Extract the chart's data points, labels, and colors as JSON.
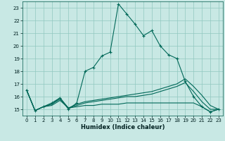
{
  "xlabel": "Humidex (Indice chaleur)",
  "bg_color": "#c8e8e4",
  "grid_color": "#90c8c0",
  "line_color": "#006858",
  "xlim": [
    -0.5,
    23.5
  ],
  "ylim": [
    14.5,
    23.5
  ],
  "yticks": [
    15,
    16,
    17,
    18,
    19,
    20,
    21,
    22,
    23
  ],
  "xticks": [
    0,
    1,
    2,
    3,
    4,
    5,
    6,
    7,
    8,
    9,
    10,
    11,
    12,
    13,
    14,
    15,
    16,
    17,
    18,
    19,
    20,
    21,
    22,
    23
  ],
  "series_main": [
    16.5,
    14.9,
    15.2,
    15.5,
    15.9,
    15.0,
    15.5,
    18.0,
    18.3,
    19.2,
    19.5,
    23.3,
    22.5,
    21.7,
    20.8,
    21.2,
    20.0,
    19.3,
    19.0,
    17.2,
    16.0,
    15.2,
    14.8,
    15.0
  ],
  "series_a": [
    16.5,
    14.9,
    15.2,
    15.3,
    15.7,
    15.1,
    15.2,
    15.3,
    15.3,
    15.4,
    15.4,
    15.4,
    15.5,
    15.5,
    15.5,
    15.5,
    15.5,
    15.5,
    15.5,
    15.5,
    15.5,
    15.2,
    14.8,
    15.0
  ],
  "series_b": [
    16.5,
    14.9,
    15.2,
    15.4,
    15.8,
    15.1,
    15.3,
    15.5,
    15.6,
    15.7,
    15.8,
    15.9,
    16.0,
    16.0,
    16.1,
    16.2,
    16.4,
    16.6,
    16.8,
    17.1,
    16.4,
    15.6,
    15.0,
    15.0
  ],
  "series_c": [
    16.5,
    14.9,
    15.2,
    15.4,
    15.9,
    15.1,
    15.4,
    15.6,
    15.7,
    15.8,
    15.9,
    16.0,
    16.1,
    16.2,
    16.3,
    16.4,
    16.6,
    16.8,
    17.0,
    17.4,
    16.8,
    16.1,
    15.3,
    15.0
  ]
}
